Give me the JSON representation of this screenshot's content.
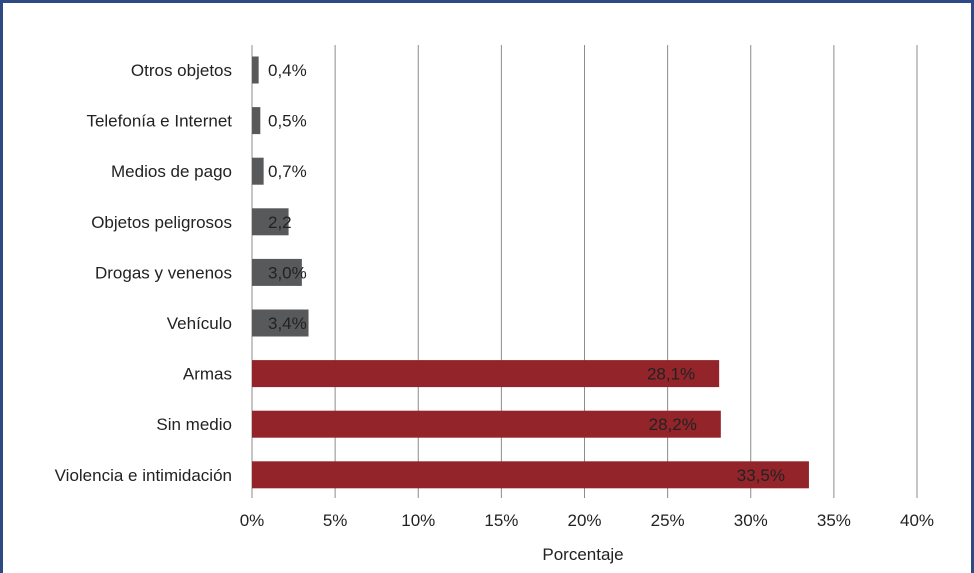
{
  "chart_data": {
    "type": "bar",
    "orientation": "horizontal",
    "categories": [
      "Otros objetos",
      "Telefonía e Internet",
      "Medios de pago",
      "Objetos peligrosos",
      "Drogas y venenos",
      "Vehículo",
      "Armas",
      "Sin medio",
      "Violencia e intimidación"
    ],
    "values": [
      0.4,
      0.5,
      0.7,
      2.2,
      3.0,
      3.4,
      28.1,
      28.2,
      33.5
    ],
    "data_labels": [
      "0,4%",
      "0,5%",
      "0,7%",
      "2,2",
      "3,0%",
      "3,4%",
      "28,1%",
      "28,2%",
      "33,5%"
    ],
    "bar_colors": [
      "#58595b",
      "#58595b",
      "#58595b",
      "#58595b",
      "#58595b",
      "#58595b",
      "#93242a",
      "#93242a",
      "#93242a"
    ],
    "xlim": [
      0,
      40
    ],
    "x_ticks": [
      0,
      5,
      10,
      15,
      20,
      25,
      30,
      35,
      40
    ],
    "x_tick_labels": [
      "0%",
      "5%",
      "10%",
      "15%",
      "20%",
      "25%",
      "30%",
      "35%",
      "40%"
    ],
    "xlabel": "Porcentaje",
    "ylabel": "",
    "title": "",
    "grid": "vertical",
    "legend": "none"
  },
  "colors": {
    "frame": "#2e4a84",
    "grid": "#8c8c8c",
    "text": "#222222",
    "label_inside": "#ffffff"
  }
}
